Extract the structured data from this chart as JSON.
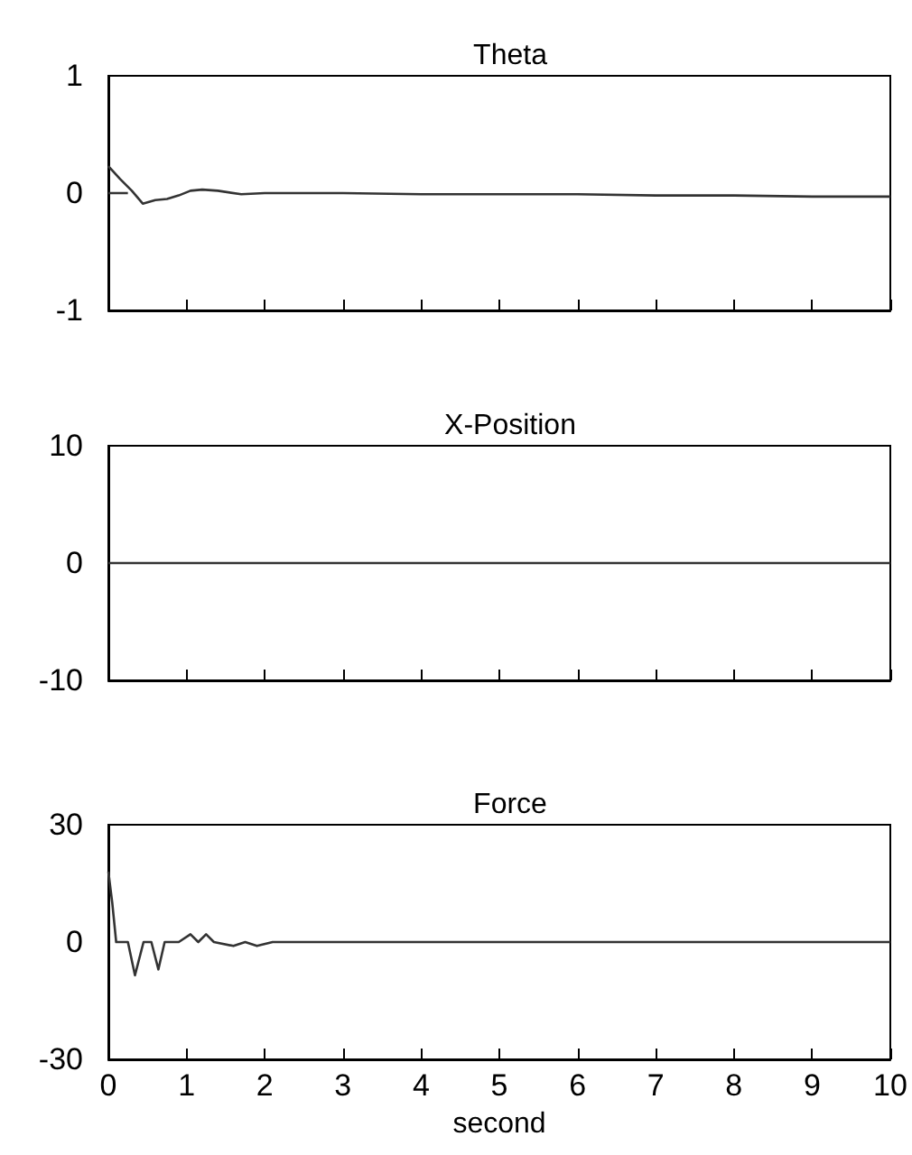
{
  "chart_data": [
    {
      "type": "line",
      "title": "Theta",
      "xlim": [
        0,
        10
      ],
      "xticks": [
        0,
        1,
        2,
        3,
        4,
        5,
        6,
        7,
        8,
        9,
        10
      ],
      "ylim": [
        -1,
        1
      ],
      "yticks": [
        -1,
        0,
        1
      ],
      "tick_labels": "y",
      "grid": false,
      "series": [
        {
          "color": "#333333",
          "x": [
            0,
            0.15,
            0.3,
            0.44,
            0.6,
            0.75,
            0.9,
            1.05,
            1.2,
            1.4,
            1.7,
            2,
            3,
            4,
            5,
            6,
            7,
            8,
            9,
            10
          ],
          "values": [
            0.23,
            0.12,
            0.02,
            -0.09,
            -0.06,
            -0.05,
            -0.02,
            0.02,
            0.03,
            0.02,
            -0.01,
            0,
            0,
            -0.01,
            -0.01,
            -0.01,
            -0.02,
            -0.02,
            -0.03,
            -0.03
          ]
        },
        {
          "color": "#333333",
          "x": [
            0,
            0.25
          ],
          "values": [
            0,
            0
          ]
        }
      ]
    },
    {
      "type": "line",
      "title": "X-Position",
      "xlim": [
        0,
        10
      ],
      "xticks": [
        0,
        1,
        2,
        3,
        4,
        5,
        6,
        7,
        8,
        9,
        10
      ],
      "ylim": [
        -10,
        10
      ],
      "yticks": [
        -10,
        0,
        10
      ],
      "tick_labels": "y",
      "grid": false,
      "series": [
        {
          "color": "#333333",
          "x": [
            0,
            10
          ],
          "values": [
            0,
            0
          ]
        }
      ]
    },
    {
      "type": "line",
      "title": "Force",
      "xlabel": "second",
      "xlim": [
        0,
        10
      ],
      "xticks": [
        0,
        1,
        2,
        3,
        4,
        5,
        6,
        7,
        8,
        9,
        10
      ],
      "ylim": [
        -30,
        30
      ],
      "yticks": [
        -30,
        0,
        30
      ],
      "grid": false,
      "series": [
        {
          "color": "#333333",
          "x": [
            0,
            0.05,
            0.1,
            0.25,
            0.34,
            0.45,
            0.55,
            0.64,
            0.72,
            0.9,
            1.05,
            1.15,
            1.25,
            1.35,
            1.6,
            1.75,
            1.9,
            2.1,
            3,
            4,
            5,
            6,
            7,
            8,
            9,
            10
          ],
          "values": [
            18,
            10,
            0,
            0,
            -8.5,
            0,
            0,
            -7,
            0,
            0,
            2,
            0,
            2,
            0,
            -1,
            0,
            -1,
            0,
            0,
            0,
            0,
            0,
            0,
            0,
            0,
            0
          ]
        }
      ]
    }
  ]
}
